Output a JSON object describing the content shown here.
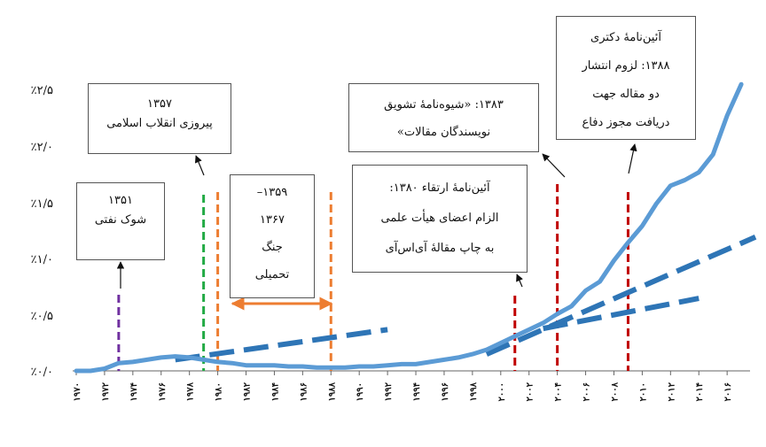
{
  "chart_data": {
    "type": "line",
    "x": [
      1970,
      1971,
      1972,
      1973,
      1974,
      1975,
      1976,
      1977,
      1978,
      1979,
      1980,
      1981,
      1982,
      1983,
      1984,
      1985,
      1986,
      1987,
      1988,
      1989,
      1990,
      1991,
      1992,
      1993,
      1994,
      1995,
      1996,
      1997,
      1998,
      1999,
      2000,
      2001,
      2002,
      2003,
      2004,
      2005,
      2006,
      2007,
      2008,
      2009,
      2010,
      2011,
      2012,
      2013,
      2014,
      2015,
      2016,
      2017
    ],
    "x_tick_labels": [
      "۱۹۷۰",
      "۱۹۷۲",
      "۱۹۷۴",
      "۱۹۷۶",
      "۱۹۷۸",
      "۱۹۸۰",
      "۱۹۸۲",
      "۱۹۸۴",
      "۱۹۸۶",
      "۱۹۸۸",
      "۱۹۹۰",
      "۱۹۹۲",
      "۱۹۹۴",
      "۱۹۹۶",
      "۱۹۹۸",
      "۲۰۰۰",
      "۲۰۰۲",
      "۲۰۰۴",
      "۲۰۰۶",
      "۲۰۰۸",
      "۲۰۱۰",
      "۲۰۱۲",
      "۲۰۱۴",
      "۲۰۱۶"
    ],
    "y_tick_labels": [
      "٪۰/۰",
      "٪۰/۵",
      "٪۱/۰",
      "٪۱/۵",
      "٪۲/۰",
      "٪۲/۵"
    ],
    "ylim": [
      0,
      2.5
    ],
    "series": [
      {
        "values": [
          0.0,
          0.0,
          0.02,
          0.07,
          0.08,
          0.1,
          0.12,
          0.13,
          0.12,
          0.1,
          0.08,
          0.07,
          0.05,
          0.05,
          0.05,
          0.04,
          0.04,
          0.03,
          0.03,
          0.03,
          0.04,
          0.04,
          0.05,
          0.06,
          0.06,
          0.08,
          0.1,
          0.12,
          0.15,
          0.19,
          0.25,
          0.31,
          0.37,
          0.43,
          0.51,
          0.58,
          0.72,
          0.8,
          0.99,
          1.15,
          1.3,
          1.5,
          1.66,
          1.71,
          1.78,
          1.94,
          2.29,
          2.57
        ]
      }
    ],
    "trend_lines": [
      {
        "from": [
          1977,
          0.1
        ],
        "to": [
          1992,
          0.37
        ]
      },
      {
        "from": [
          1999,
          0.15
        ],
        "to": [
          2018,
          1.2
        ]
      },
      {
        "from": [
          2003,
          0.38
        ],
        "to": [
          2014,
          0.65
        ]
      }
    ],
    "events": [
      {
        "year": 1973,
        "color": "#7030a0"
      },
      {
        "year": 1979,
        "color": "#22aa44"
      },
      {
        "year": 1980,
        "color": "#ed7d31"
      },
      {
        "year": 1988,
        "color": "#ed7d31"
      },
      {
        "year": 2001,
        "color": "#c00000"
      },
      {
        "year": 2004,
        "color": "#c00000"
      },
      {
        "year": 2009,
        "color": "#c00000"
      }
    ],
    "annotations": [
      {
        "id": "a1351",
        "lines": [
          "۱۳۵۱",
          "شوک نفتی"
        ]
      },
      {
        "id": "a1357",
        "lines": [
          "۱۳۵۷",
          "پیروزی انقلاب اسلامی"
        ]
      },
      {
        "id": "a1359",
        "lines": [
          "۱۳۵۹–",
          "۱۳۶۷",
          "جنگ",
          "تحمیلی"
        ]
      },
      {
        "id": "a1380",
        "lines": [
          "آئین‌نامهٔ ارتقاء ۱۳۸۰:",
          "الزام اعضای هیأت علمی",
          "به چاپ مقالهٔ آی‌اس‌آی"
        ]
      },
      {
        "id": "a1383",
        "lines": [
          "۱۳۸۳: «شیوه‌نامهٔ تشویق",
          "نویسندگان مقالات»"
        ]
      },
      {
        "id": "a1388",
        "lines": [
          "آئین‌نامهٔ دکتری",
          "۱۳۸۸: لزوم انتشار",
          "دو مقاله جهت",
          "دریافت مجوز دفاع"
        ]
      }
    ],
    "colors": {
      "series": "#5b9bd5",
      "trend": "#2e75b6",
      "arrow_war": "#ed7d31"
    }
  }
}
